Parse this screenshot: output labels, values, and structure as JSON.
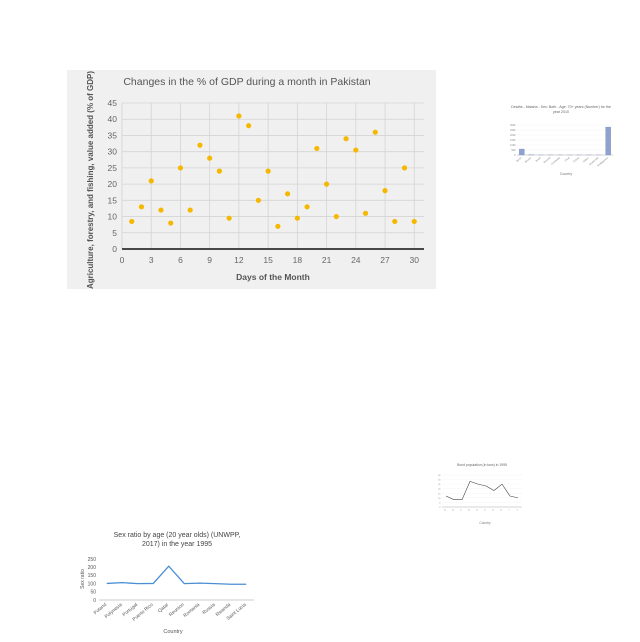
{
  "chart_data": [
    {
      "type": "scatter",
      "title": "Changes in the % of GDP during a month in Pakistan",
      "xlabel": "Days of the Month",
      "ylabel": "Agriculture, forestry, and fishing, value added (% of GDP)",
      "xlim": [
        0,
        31
      ],
      "ylim": [
        0,
        45
      ],
      "xticks": [
        0,
        3,
        6,
        9,
        12,
        15,
        18,
        21,
        24,
        27,
        30
      ],
      "yticks": [
        0,
        5,
        10,
        15,
        20,
        25,
        30,
        35,
        40,
        45
      ],
      "grid": true,
      "series": [
        {
          "color": "#f5b800",
          "x": [
            1,
            2,
            3,
            4,
            5,
            6,
            7,
            8,
            9,
            10,
            11,
            12,
            13,
            14,
            15,
            16,
            17,
            18,
            19,
            20,
            21,
            22,
            23,
            24,
            25,
            26,
            27,
            28,
            29,
            30
          ],
          "y": [
            8.5,
            13,
            21,
            12,
            8,
            25,
            12,
            32,
            28,
            24,
            9.5,
            41,
            38,
            15,
            24,
            7,
            17,
            9.5,
            13,
            31,
            20,
            10,
            34,
            30.5,
            11,
            36,
            18,
            8.5,
            25,
            8.5
          ]
        }
      ]
    },
    {
      "type": "bar",
      "title": "Deaths - Malaria - Sex: Both - Age: 70+ years (Number) for the year 2010",
      "xlabel": "Country",
      "ylabel": "",
      "ylim": [
        0,
        3000
      ],
      "yticks": [
        0,
        500,
        1000,
        1500,
        2000,
        2500,
        3000
      ],
      "categories": [
        "Benin",
        "Bhutan",
        "Brazil",
        "Burundi",
        "Cambodia",
        "Chad",
        "Eritrea",
        "Gabon",
        "Guatemala",
        "Madagascar"
      ],
      "values": [
        600,
        30,
        5,
        8,
        6,
        5,
        4,
        4,
        4,
        2800
      ],
      "color": "#8ea2cf"
    },
    {
      "type": "line",
      "title": "Bond population (in tons) in 1995",
      "xlabel": "Country",
      "ylabel": "",
      "categories": [
        "A",
        "B",
        "C",
        "D",
        "E",
        "F",
        "G",
        "H",
        "I",
        "J"
      ],
      "values": [
        12,
        8,
        8,
        28,
        25,
        23,
        18,
        25,
        12,
        10
      ],
      "ylim": [
        0,
        35
      ],
      "color": "#444444"
    },
    {
      "type": "line",
      "title": "Sex ratio by age (20 year olds) (UNWPP, 2017) in the year 1995",
      "xlabel": "Country",
      "ylabel": "Sex ratio",
      "ylim": [
        0,
        250
      ],
      "yticks": [
        0,
        50,
        100,
        150,
        200,
        250
      ],
      "grid": false,
      "categories": [
        "Poland",
        "Polynesia",
        "Portugal",
        "Puerto Rico",
        "Qatar",
        "Reunion",
        "Romania",
        "Russia",
        "Rwanda",
        "Saint Lucia"
      ],
      "values": [
        101,
        106,
        100,
        101,
        206,
        100,
        103,
        100,
        96,
        96
      ],
      "color": "#4a8fd4"
    }
  ]
}
